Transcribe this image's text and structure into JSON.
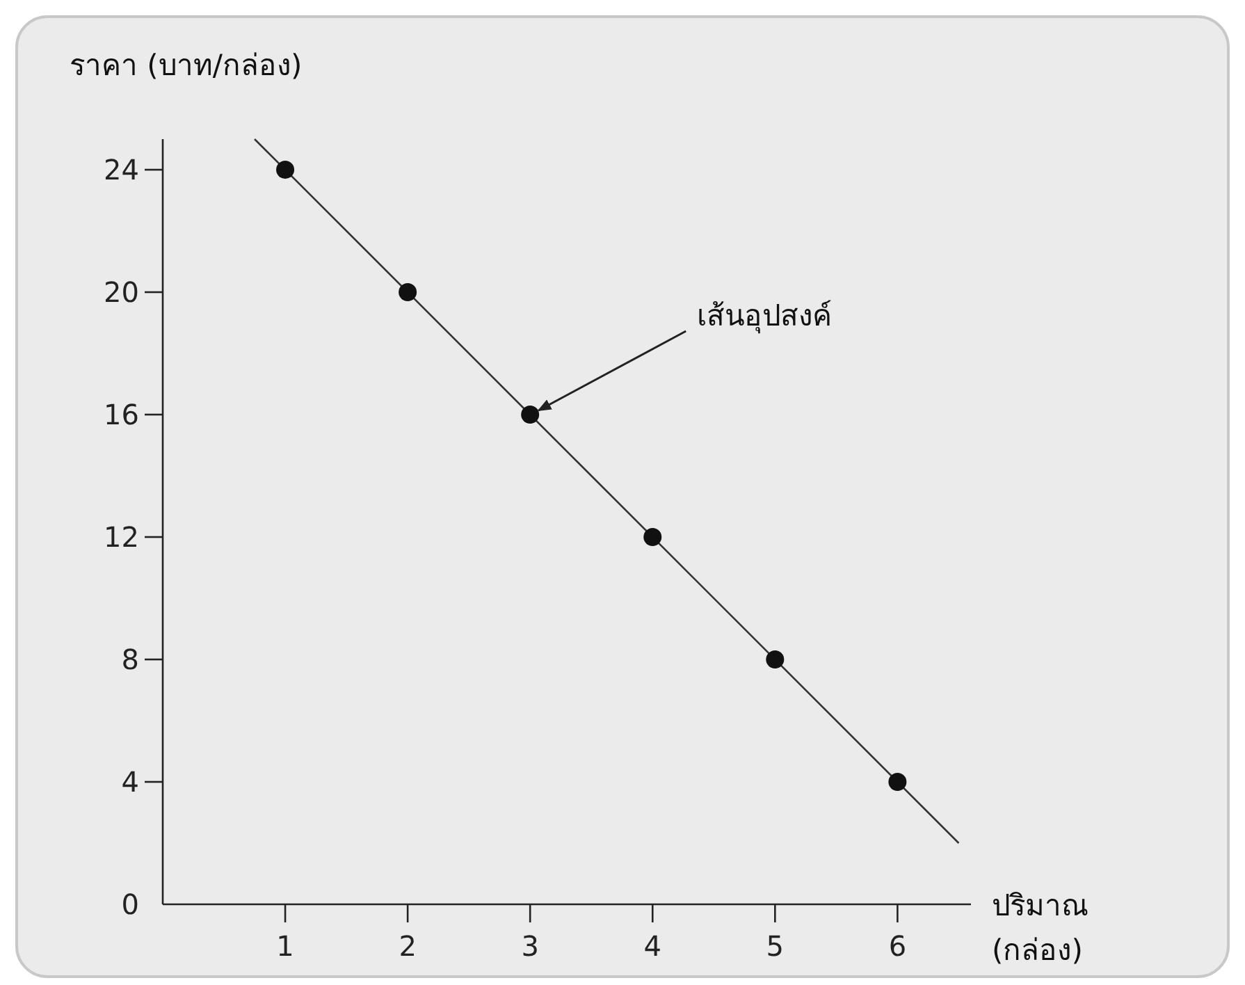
{
  "chart_data": {
    "type": "scatter",
    "ylabel": "ราคา (บาท/กล่อง)",
    "xlabel": "ปริมาณ (กล่อง)",
    "annotations": [
      {
        "text": "เส้นอุปสงค์",
        "x": 3,
        "y": 16
      }
    ],
    "series": [
      {
        "color": "#111111",
        "x": [
          1,
          2,
          3,
          4,
          5,
          6
        ],
        "values": [
          24,
          20,
          16,
          12,
          8,
          4
        ],
        "marker": "circle"
      },
      {
        "type": "line",
        "color": "#333333",
        "x": [
          0.75,
          6.5
        ],
        "values": [
          25,
          2
        ],
        "marker": "none"
      }
    ],
    "xlim": [
      0,
      6.6
    ],
    "ylim": [
      0,
      25
    ],
    "xticks": [
      1,
      2,
      3,
      4,
      5,
      6
    ],
    "yticks": [
      0,
      4,
      8,
      12,
      16,
      20,
      24
    ],
    "grid": false
  }
}
